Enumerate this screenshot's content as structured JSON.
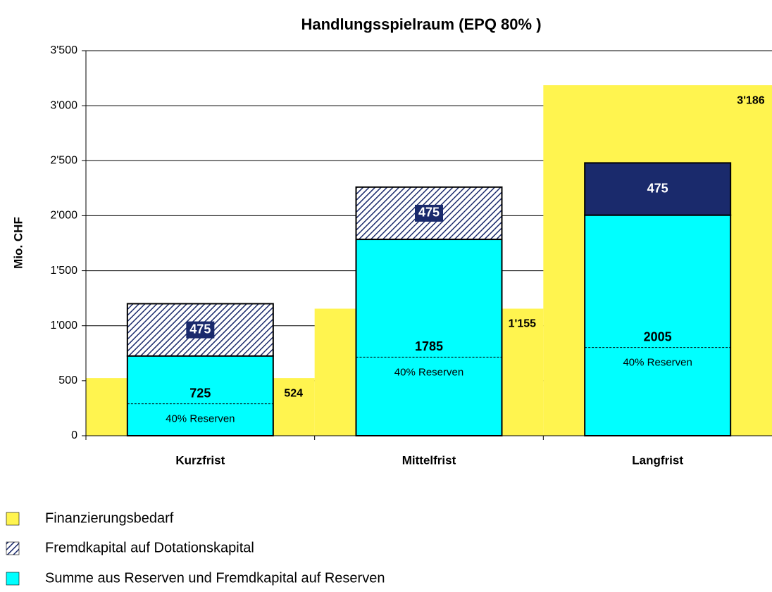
{
  "chart_data": {
    "type": "bar",
    "title": "Handlungsspielraum (EPQ 80% )",
    "y_label": "Mio. CHF",
    "categories": [
      "Kurzfrist",
      "Mittelfrist",
      "Langfrist"
    ],
    "series": [
      {
        "name": "Finanzierungsbedarf",
        "color": "#fff44f",
        "values": [
          524,
          1155,
          3186
        ],
        "value_labels": [
          "524",
          "1'155",
          "3'186"
        ]
      },
      {
        "name": "Fremdkapital auf Dotationskapital",
        "color": "#1a2a6c",
        "values": [
          475,
          475,
          475
        ],
        "hatched": [
          true,
          true,
          false
        ]
      },
      {
        "name": "Summe aus Reserven und Fremdkapital auf Reserven",
        "color": "#00ffff",
        "values": [
          725,
          1785,
          2005
        ]
      }
    ],
    "annotations": {
      "label": "40% Reserven",
      "values": [
        290,
        714,
        802
      ]
    },
    "ylim": [
      0,
      3500
    ],
    "yticks": [
      0,
      500,
      {
        "value": 1000,
        "label": "1'000"
      },
      {
        "value": 1500,
        "label": "1'500"
      },
      {
        "value": 2000,
        "label": "2'000"
      },
      {
        "value": 2500,
        "label": "2'500"
      },
      {
        "value": 3000,
        "label": "3'000"
      },
      {
        "value": 3500,
        "label": "3'500"
      }
    ],
    "grid": true
  }
}
